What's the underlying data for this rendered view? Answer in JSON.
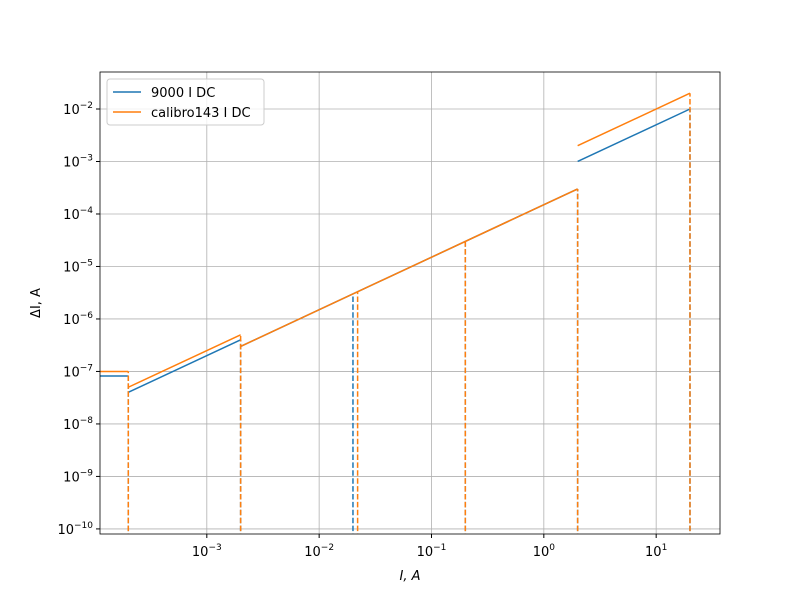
{
  "chart_data": {
    "type": "line",
    "x_label": "I, A",
    "y_label": "ΔI, A",
    "xscale": "log",
    "yscale": "log",
    "grid": true,
    "legend": "upper left",
    "xlim": [
      0.000112,
      37
    ],
    "ylim": [
      8e-11,
      0.0507
    ],
    "xticks": [
      {
        "value": 0.001,
        "label": "10−3"
      },
      {
        "value": 0.01,
        "label": "10−2"
      },
      {
        "value": 0.1,
        "label": "10−1"
      },
      {
        "value": 1,
        "label": "100"
      },
      {
        "value": 10,
        "label": "101"
      }
    ],
    "yticks": [
      {
        "value": 1e-10,
        "label": "10−10"
      },
      {
        "value": 1e-09,
        "label": "10−9"
      },
      {
        "value": 1e-08,
        "label": "10−8"
      },
      {
        "value": 1e-07,
        "label": "10−7"
      },
      {
        "value": 1e-06,
        "label": "10−6"
      },
      {
        "value": 1e-05,
        "label": "10−5"
      },
      {
        "value": 0.0001,
        "label": "10−4"
      },
      {
        "value": 0.001,
        "label": "10−3"
      },
      {
        "value": 0.01,
        "label": "10−2"
      }
    ],
    "series": [
      {
        "name": "9000 I DC",
        "color": "#1f77b4",
        "x": [
          0.0001,
          0.0002,
          0.0002,
          0.0002,
          0.002,
          0.002,
          0.002,
          2,
          2,
          2,
          20
        ],
        "values": [
          8.2e-08,
          8.2e-08,
          null,
          4e-08,
          4e-07,
          null,
          3e-07,
          0.0003,
          null,
          0.001,
          0.01
        ],
        "drop_x": [
          0.0002,
          0.002,
          0.02,
          0.2,
          2,
          20
        ],
        "drop_values": [
          8.2e-08,
          4e-07,
          3e-06,
          3e-05,
          0.0003,
          0.01
        ]
      },
      {
        "name": "calibro143 I DC",
        "color": "#ff7f0e",
        "x": [
          0.0001,
          0.0002,
          0.0002,
          0.0002,
          0.002,
          0.002,
          0.002,
          2,
          2,
          2,
          20
        ],
        "values": [
          1e-07,
          1e-07,
          null,
          5e-08,
          5e-07,
          null,
          3e-07,
          0.0003,
          null,
          0.002,
          0.02
        ],
        "drop_x": [
          0.0002,
          0.002,
          0.022,
          0.2,
          2,
          20
        ],
        "drop_values": [
          1e-07,
          5e-07,
          3.3e-06,
          3.2e-05,
          0.0003,
          0.02
        ]
      }
    ]
  }
}
